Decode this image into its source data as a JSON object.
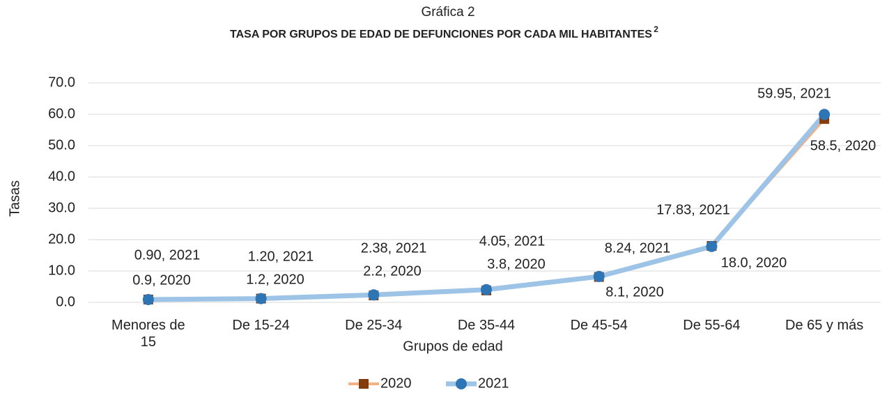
{
  "chart_data": {
    "type": "line",
    "title": "Gráfica 2",
    "subtitle": "TASA POR GRUPOS DE EDAD DE DEFUNCIONES POR CADA MIL HABITANTES",
    "subtitle_superscript": "2",
    "x_label": "Grupos de edad",
    "y_label": "Tasas",
    "categories": [
      "Menores de 15",
      "De 15-24",
      "De 25-34",
      "De 35-44",
      "De 45-54",
      "De 55-64",
      "De 65 y más"
    ],
    "series": [
      {
        "name": "2020",
        "color": "#f4b183",
        "marker_color": "#843c0c",
        "marker": "square",
        "values": [
          0.9,
          1.2,
          2.2,
          3.8,
          8.1,
          18.0,
          58.5
        ],
        "value_labels": [
          "0.9, 2020",
          "1.2, 2020",
          "2.2, 2020",
          "3.8, 2020",
          "8.1, 2020",
          "18.0, 2020",
          "58.5, 2020"
        ]
      },
      {
        "name": "2021",
        "color": "#9dc3e6",
        "marker_color": "#2e75b6",
        "marker": "circle",
        "values": [
          0.9,
          1.2,
          2.38,
          4.05,
          8.24,
          17.83,
          59.95
        ],
        "value_labels": [
          "0.90, 2021",
          "1.20, 2021",
          "2.38, 2021",
          "4.05, 2021",
          "8.24, 2021",
          "17.83, 2021",
          "59.95, 2021"
        ]
      }
    ],
    "ylim": [
      0,
      70
    ],
    "yticks": [
      {
        "value": 0,
        "label": "0.0"
      },
      {
        "value": 10,
        "label": "10.0"
      },
      {
        "value": 20,
        "label": "20.0"
      },
      {
        "value": 30,
        "label": "30.0"
      },
      {
        "value": 40,
        "label": "40.0"
      },
      {
        "value": 50,
        "label": "50.0"
      },
      {
        "value": 60,
        "label": "60.0"
      },
      {
        "value": 70,
        "label": "70.0"
      }
    ],
    "grid": true,
    "legend": "bottom"
  }
}
